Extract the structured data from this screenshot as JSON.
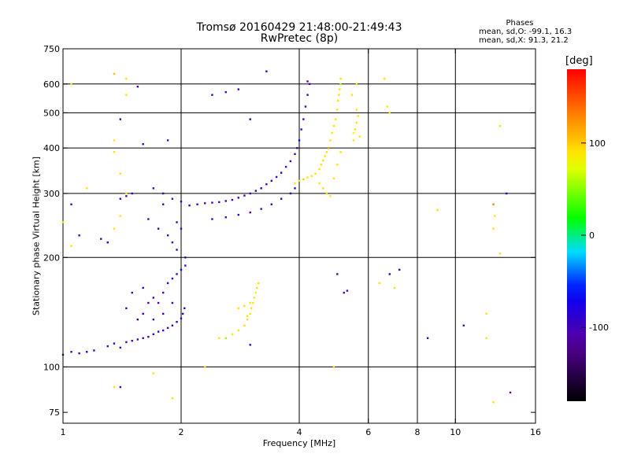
{
  "title_line1": "Tromsø 20160429 21:48:00-21:49:43",
  "title_line2": "RwPretec (8p)",
  "phases": {
    "header": "Phases",
    "line_o": "mean, sd,O: -99.1, 16.3",
    "line_x": "mean, sd,X:  91.3, 21.2"
  },
  "colorbar": {
    "unit": "[deg]",
    "ticks": [
      {
        "value": 100,
        "label": "100"
      },
      {
        "value": 0,
        "label": "0"
      },
      {
        "value": -100,
        "label": "-100"
      }
    ],
    "range": [
      -180,
      180
    ]
  },
  "chart_data": {
    "type": "scatter",
    "xlabel": "Frequency [MHz]",
    "ylabel": "Stationary phase Virtual Height [km]",
    "x_scale": "log",
    "y_scale": "log",
    "xlim": [
      1,
      16
    ],
    "ylim": [
      70,
      750
    ],
    "x_ticks": [
      {
        "value": 1,
        "label": "1"
      },
      {
        "value": 2,
        "label": "2"
      },
      {
        "value": 4,
        "label": "4"
      },
      {
        "value": 6,
        "label": "6"
      },
      {
        "value": 8,
        "label": "8"
      },
      {
        "value": 10,
        "label": "10"
      },
      {
        "value": 16,
        "label": "16"
      }
    ],
    "y_ticks": [
      {
        "value": 75,
        "label": "75"
      },
      {
        "value": 100,
        "label": "100"
      },
      {
        "value": 200,
        "label": "200"
      },
      {
        "value": 300,
        "label": "300"
      },
      {
        "value": 400,
        "label": "400"
      },
      {
        "value": 500,
        "label": "500"
      },
      {
        "value": 600,
        "label": "600"
      },
      {
        "value": 750,
        "label": "750"
      }
    ],
    "x_grid": [
      2,
      4,
      6,
      8,
      10
    ],
    "y_grid": [
      100,
      200,
      300,
      400,
      500,
      600
    ],
    "series": [
      {
        "mode": "O",
        "phase_deg": -100,
        "points": [
          [
            1.0,
            108
          ],
          [
            1.05,
            110
          ],
          [
            1.1,
            109
          ],
          [
            1.15,
            110
          ],
          [
            1.2,
            111
          ],
          [
            1.3,
            114
          ],
          [
            1.35,
            116
          ],
          [
            1.4,
            113
          ],
          [
            1.45,
            117
          ],
          [
            1.5,
            118
          ],
          [
            1.55,
            119
          ],
          [
            1.6,
            120
          ],
          [
            1.65,
            121
          ],
          [
            1.7,
            123
          ],
          [
            1.75,
            125
          ],
          [
            1.8,
            126
          ],
          [
            1.85,
            128
          ],
          [
            1.9,
            130
          ],
          [
            1.95,
            133
          ],
          [
            2.0,
            136
          ],
          [
            2.02,
            140
          ],
          [
            2.04,
            145
          ],
          [
            1.75,
            150
          ],
          [
            1.8,
            160
          ],
          [
            1.85,
            170
          ],
          [
            1.9,
            175
          ],
          [
            1.95,
            180
          ],
          [
            2.0,
            185
          ],
          [
            2.05,
            190
          ],
          [
            2.05,
            200
          ],
          [
            1.6,
            140
          ],
          [
            1.65,
            150
          ],
          [
            1.7,
            155
          ],
          [
            1.6,
            165
          ],
          [
            1.5,
            160
          ],
          [
            1.45,
            145
          ],
          [
            1.55,
            135
          ],
          [
            1.7,
            135
          ],
          [
            1.8,
            140
          ],
          [
            1.9,
            150
          ],
          [
            1.8,
            280
          ],
          [
            1.9,
            290
          ],
          [
            2.0,
            285
          ],
          [
            2.1,
            278
          ],
          [
            2.2,
            280
          ],
          [
            2.3,
            282
          ],
          [
            2.4,
            283
          ],
          [
            2.5,
            284
          ],
          [
            2.6,
            286
          ],
          [
            2.7,
            288
          ],
          [
            2.8,
            292
          ],
          [
            2.9,
            296
          ],
          [
            3.0,
            300
          ],
          [
            3.1,
            305
          ],
          [
            3.2,
            310
          ],
          [
            3.3,
            318
          ],
          [
            3.4,
            325
          ],
          [
            3.5,
            333
          ],
          [
            3.6,
            342
          ],
          [
            3.7,
            355
          ],
          [
            3.8,
            368
          ],
          [
            3.9,
            385
          ],
          [
            3.95,
            400
          ],
          [
            4.0,
            420
          ],
          [
            4.05,
            450
          ],
          [
            4.1,
            480
          ],
          [
            4.15,
            520
          ],
          [
            4.2,
            560
          ],
          [
            4.25,
            600
          ],
          [
            2.4,
            255
          ],
          [
            2.6,
            258
          ],
          [
            2.8,
            262
          ],
          [
            3.0,
            266
          ],
          [
            3.2,
            272
          ],
          [
            3.4,
            280
          ],
          [
            3.6,
            290
          ],
          [
            3.8,
            300
          ],
          [
            3.9,
            310
          ],
          [
            1.8,
            300
          ],
          [
            1.7,
            310
          ],
          [
            1.65,
            255
          ],
          [
            1.75,
            240
          ],
          [
            1.85,
            230
          ],
          [
            1.9,
            220
          ],
          [
            1.95,
            210
          ],
          [
            1.95,
            250
          ],
          [
            2.0,
            240
          ],
          [
            1.4,
            290
          ],
          [
            1.45,
            295
          ],
          [
            1.5,
            300
          ],
          [
            1.3,
            220
          ],
          [
            1.25,
            225
          ],
          [
            1.4,
            480
          ],
          [
            1.6,
            410
          ],
          [
            1.85,
            420
          ],
          [
            1.55,
            590
          ],
          [
            2.4,
            560
          ],
          [
            2.6,
            570
          ],
          [
            2.8,
            580
          ],
          [
            3.0,
            480
          ],
          [
            3.3,
            650
          ],
          [
            4.2,
            610
          ],
          [
            5.2,
            160
          ],
          [
            5.3,
            162
          ],
          [
            6.8,
            180
          ],
          [
            7.2,
            185
          ],
          [
            10.5,
            130
          ],
          [
            13.5,
            300
          ],
          [
            13.8,
            85
          ],
          [
            8.5,
            120
          ],
          [
            5.0,
            180
          ],
          [
            3.0,
            115
          ],
          [
            1.05,
            280
          ],
          [
            1.1,
            230
          ],
          [
            1.4,
            88
          ]
        ]
      },
      {
        "mode": "X",
        "phase_deg": 91,
        "points": [
          [
            2.6,
            120
          ],
          [
            2.7,
            123
          ],
          [
            2.8,
            126
          ],
          [
            2.9,
            130
          ],
          [
            2.95,
            135
          ],
          [
            3.0,
            140
          ],
          [
            3.02,
            145
          ],
          [
            3.05,
            150
          ],
          [
            3.07,
            155
          ],
          [
            3.1,
            160
          ],
          [
            3.12,
            165
          ],
          [
            3.15,
            170
          ],
          [
            3.0,
            150
          ],
          [
            2.9,
            147
          ],
          [
            2.8,
            145
          ],
          [
            2.95,
            138
          ],
          [
            3.9,
            320
          ],
          [
            4.0,
            325
          ],
          [
            4.1,
            328
          ],
          [
            4.2,
            332
          ],
          [
            4.3,
            335
          ],
          [
            4.4,
            340
          ],
          [
            4.5,
            350
          ],
          [
            4.55,
            360
          ],
          [
            4.6,
            370
          ],
          [
            4.65,
            380
          ],
          [
            4.7,
            390
          ],
          [
            4.75,
            400
          ],
          [
            4.8,
            420
          ],
          [
            4.85,
            440
          ],
          [
            4.9,
            460
          ],
          [
            4.95,
            480
          ],
          [
            5.0,
            510
          ],
          [
            5.02,
            540
          ],
          [
            5.05,
            560
          ],
          [
            5.07,
            580
          ],
          [
            5.1,
            600
          ],
          [
            5.1,
            620
          ],
          [
            4.5,
            320
          ],
          [
            4.6,
            310
          ],
          [
            4.7,
            300
          ],
          [
            4.8,
            295
          ],
          [
            4.9,
            330
          ],
          [
            5.0,
            360
          ],
          [
            5.1,
            390
          ],
          [
            5.5,
            440
          ],
          [
            5.55,
            450
          ],
          [
            5.6,
            470
          ],
          [
            5.65,
            490
          ],
          [
            5.6,
            510
          ],
          [
            5.7,
            430
          ],
          [
            5.5,
            420
          ],
          [
            5.6,
            600
          ],
          [
            5.45,
            560
          ],
          [
            1.35,
            640
          ],
          [
            1.45,
            620
          ],
          [
            1.45,
            560
          ],
          [
            1.35,
            420
          ],
          [
            1.35,
            390
          ],
          [
            1.4,
            340
          ],
          [
            1.45,
            300
          ],
          [
            1.4,
            260
          ],
          [
            1.35,
            240
          ],
          [
            12.5,
            280
          ],
          [
            12.6,
            260
          ],
          [
            12.5,
            240
          ],
          [
            12.0,
            140
          ],
          [
            12.0,
            120
          ],
          [
            13.0,
            460
          ],
          [
            13.0,
            205
          ],
          [
            12.5,
            80
          ],
          [
            6.6,
            620
          ],
          [
            6.7,
            520
          ],
          [
            6.8,
            500
          ],
          [
            9.0,
            270
          ],
          [
            1.05,
            600
          ],
          [
            1.0,
            250
          ],
          [
            1.05,
            215
          ],
          [
            1.15,
            310
          ],
          [
            1.35,
            88
          ],
          [
            2.3,
            100
          ],
          [
            2.5,
            120
          ],
          [
            4.9,
            100
          ],
          [
            6.4,
            170
          ],
          [
            7.0,
            165
          ],
          [
            1.7,
            96
          ],
          [
            1.9,
            82
          ]
        ]
      }
    ]
  }
}
